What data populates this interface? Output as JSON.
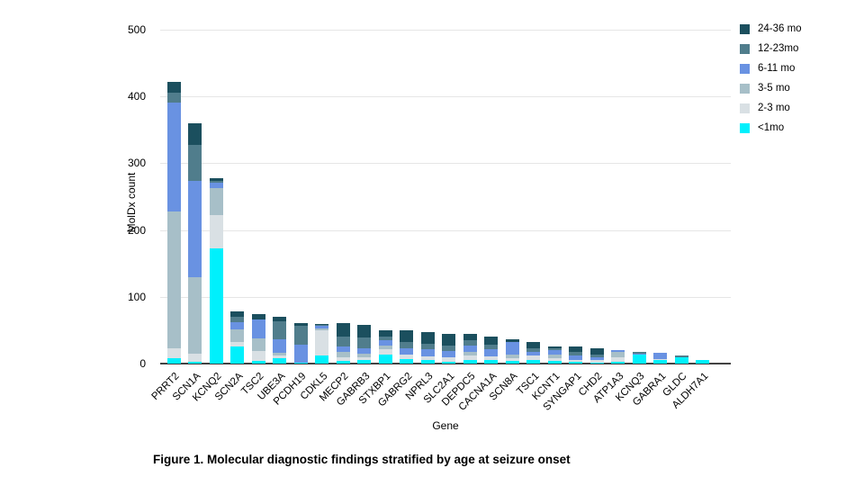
{
  "chart_data": {
    "type": "bar",
    "subtype": "stacked-vertical",
    "title": "",
    "xlabel": "Gene",
    "ylabel": "MolDx count",
    "ylim": [
      0,
      500
    ],
    "yticks": [
      0,
      100,
      200,
      300,
      400,
      500
    ],
    "grid": true,
    "legend_position": "top-right",
    "categories": [
      "PRRT2",
      "SCN1A",
      "KCNQ2",
      "SCN2A",
      "TSC2",
      "UBE3A",
      "PCDH19",
      "CDKL5",
      "MECP2",
      "GABRB3",
      "STXBP1",
      "GABRG2",
      "NPRL3",
      "SLC2A1",
      "DEPDC5",
      "CACNA1A",
      "SCN8A",
      "TSC1",
      "KCNT1",
      "SYNGAP1",
      "CHD2",
      "ATP1A3",
      "KCNQ3",
      "GABRA1",
      "GLDC",
      "ALDH7A1"
    ],
    "series": [
      {
        "name": "<1mo",
        "color": "#00f0fc",
        "values": [
          8,
          3,
          173,
          25,
          4,
          8,
          2,
          12,
          4,
          5,
          14,
          7,
          5,
          3,
          6,
          6,
          4,
          5,
          4,
          3,
          2,
          3,
          14,
          5,
          9,
          5
        ]
      },
      {
        "name": "2-3 mo",
        "color": "#d9e0e4",
        "values": [
          15,
          12,
          50,
          8,
          15,
          4,
          0,
          38,
          6,
          4,
          8,
          6,
          6,
          7,
          6,
          5,
          4,
          7,
          4,
          3,
          3,
          6,
          0,
          2,
          0,
          0
        ]
      },
      {
        "name": "3-5 mo",
        "color": "#a7bfc8",
        "values": [
          205,
          115,
          40,
          18,
          19,
          4,
          0,
          2,
          7,
          6,
          5,
          0,
          0,
          0,
          5,
          0,
          5,
          0,
          6,
          0,
          0,
          9,
          0,
          0,
          0,
          0
        ]
      },
      {
        "name": "6-11 mo",
        "color": "#6992e2",
        "values": [
          163,
          143,
          8,
          11,
          28,
          20,
          26,
          4,
          9,
          8,
          8,
          10,
          10,
          9,
          10,
          10,
          20,
          5,
          6,
          6,
          4,
          2,
          1,
          9,
          0,
          0
        ]
      },
      {
        "name": "12-23mo",
        "color": "#507d8c",
        "values": [
          15,
          55,
          3,
          8,
          0,
          28,
          29,
          2,
          15,
          16,
          6,
          9,
          9,
          8,
          8,
          7,
          0,
          6,
          3,
          5,
          5,
          0,
          2,
          0,
          3,
          0
        ]
      },
      {
        "name": "24-36 mo",
        "color": "#1b4f5e",
        "values": [
          16,
          32,
          3,
          8,
          8,
          6,
          4,
          2,
          19,
          19,
          9,
          18,
          17,
          18,
          9,
          13,
          3,
          9,
          3,
          8,
          9,
          0,
          0,
          0,
          0,
          0
        ]
      }
    ]
  },
  "caption": "Figure 1. Molecular diagnostic findings stratified by age at seizure onset"
}
